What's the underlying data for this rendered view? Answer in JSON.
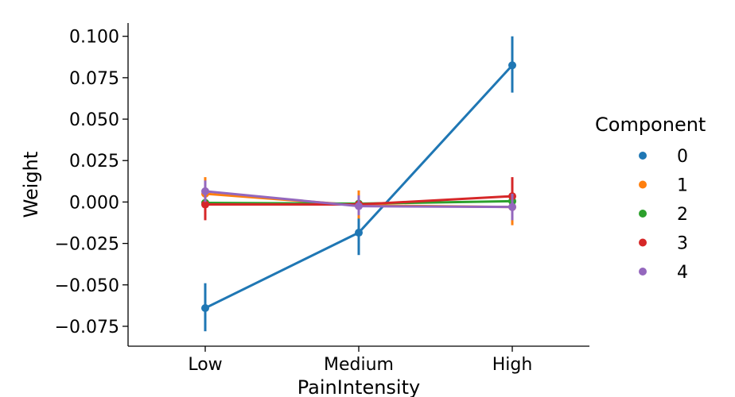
{
  "chart_data": {
    "type": "line",
    "title": "",
    "xlabel": "PainIntensity",
    "ylabel": "Weight",
    "categories": [
      "Low",
      "Medium",
      "High"
    ],
    "ylim": [
      -0.087,
      0.108
    ],
    "yticks": [
      0.1,
      0.075,
      0.05,
      0.025,
      0.0,
      -0.025,
      -0.05,
      -0.075
    ],
    "ytick_labels": [
      "0.100",
      "0.075",
      "0.050",
      "0.025",
      "0.000",
      "−0.025",
      "−0.050",
      "−0.075"
    ],
    "grid": false,
    "legend": {
      "title": "Component",
      "placement": "right"
    },
    "series": [
      {
        "name": "0",
        "color": "#1f77b4",
        "values": [
          -0.064,
          -0.0185,
          0.0825
        ],
        "err_low": [
          -0.078,
          -0.032,
          0.066
        ],
        "err_high": [
          -0.049,
          -0.008,
          0.1
        ]
      },
      {
        "name": "1",
        "color": "#ff7f0e",
        "values": [
          0.005,
          -0.002,
          -0.003
        ],
        "err_low": [
          -0.004,
          -0.01,
          -0.014
        ],
        "err_high": [
          0.015,
          0.007,
          0.006
        ]
      },
      {
        "name": "2",
        "color": "#2ca02c",
        "values": [
          -0.0005,
          -0.001,
          0.0005
        ],
        "err_low": [
          -0.005,
          -0.005,
          -0.003
        ],
        "err_high": [
          0.004,
          0.003,
          0.004
        ]
      },
      {
        "name": "3",
        "color": "#d62728",
        "values": [
          -0.0015,
          -0.0015,
          0.0035
        ],
        "err_low": [
          -0.011,
          -0.007,
          -0.008
        ],
        "err_high": [
          0.007,
          0.004,
          0.015
        ]
      },
      {
        "name": "4",
        "color": "#9467bd",
        "values": [
          0.0065,
          -0.0025,
          -0.003
        ],
        "err_low": [
          0.0,
          -0.008,
          -0.011
        ],
        "err_high": [
          0.013,
          0.004,
          0.005
        ]
      }
    ]
  }
}
